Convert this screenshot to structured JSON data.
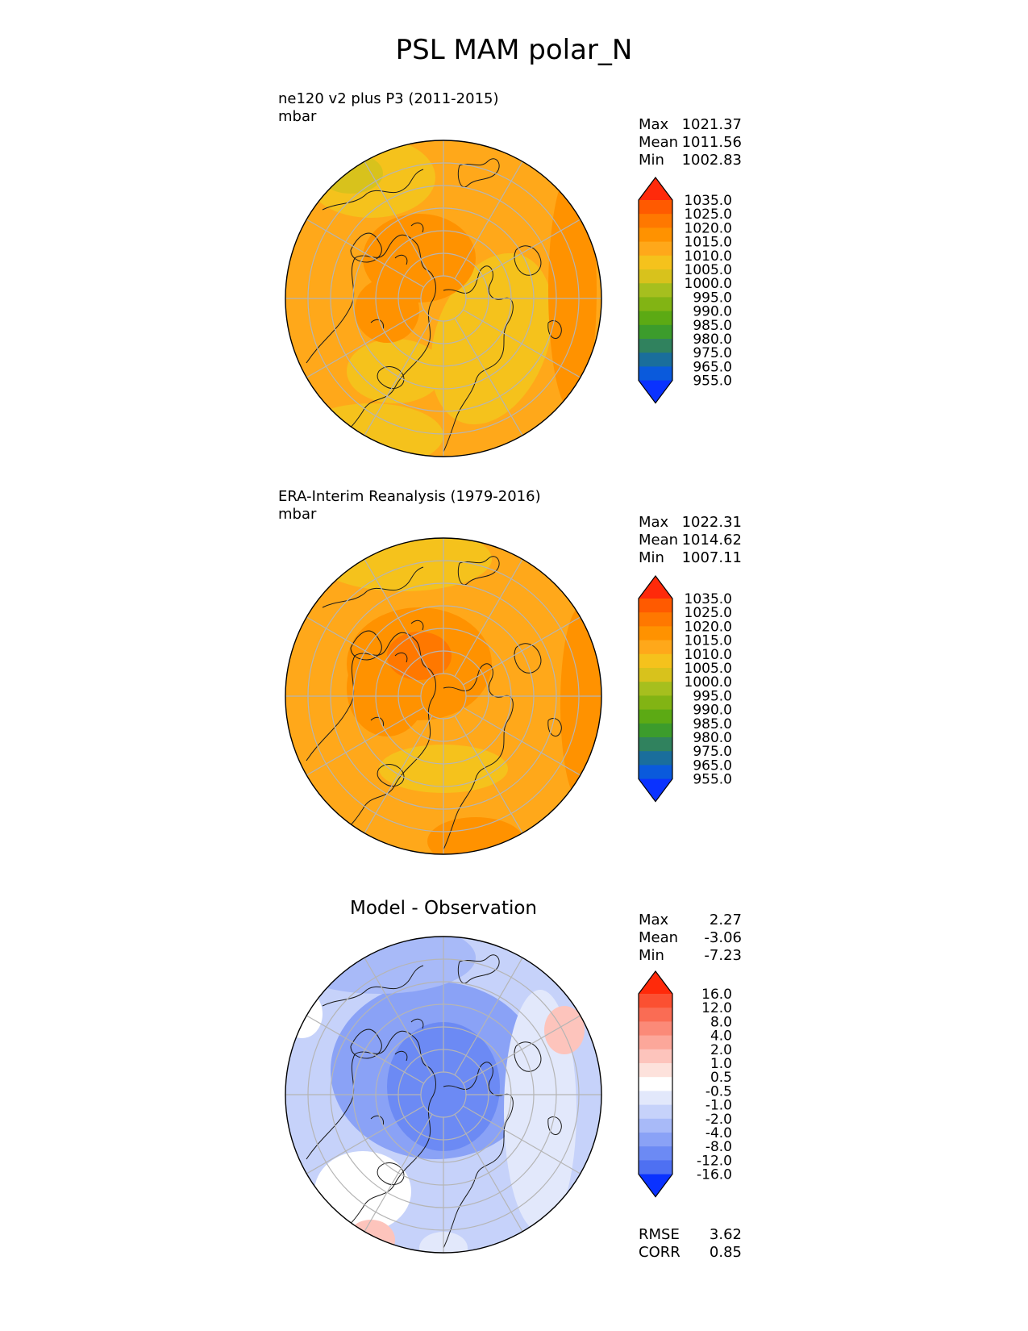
{
  "title": "PSL MAM polar_N",
  "panels": [
    {
      "id": "model",
      "title": "ne120 v2 plus P3 (2011-2015)",
      "units": "mbar",
      "stats": [
        {
          "label": "Max",
          "value": "1021.37"
        },
        {
          "label": "Mean",
          "value": "1011.56"
        },
        {
          "label": "Min",
          "value": "1002.83"
        }
      ]
    },
    {
      "id": "obs",
      "title": "ERA-Interim Reanalysis (1979-2016)",
      "units": "mbar",
      "stats": [
        {
          "label": "Max",
          "value": "1022.31"
        },
        {
          "label": "Mean",
          "value": "1014.62"
        },
        {
          "label": "Min",
          "value": "1007.11"
        }
      ]
    },
    {
      "id": "diff",
      "title": "Model - Observation",
      "stats": [
        {
          "label": "Max",
          "value": "2.27"
        },
        {
          "label": "Mean",
          "value": "-3.06"
        },
        {
          "label": "Min",
          "value": "-7.23"
        }
      ],
      "metrics": [
        {
          "label": "RMSE",
          "value": "3.62"
        },
        {
          "label": "CORR",
          "value": "0.85"
        }
      ]
    }
  ],
  "chart_data": [
    {
      "type": "heatmap",
      "projection": "north-polar-stereographic",
      "title": "ne120 v2 plus P3 (2011-2015)",
      "units": "mbar",
      "colorbar": {
        "levels": [
          "1035.0",
          "1025.0",
          "1020.0",
          "1015.0",
          "1010.0",
          "1005.0",
          "1000.0",
          "995.0",
          "990.0",
          "985.0",
          "980.0",
          "975.0",
          "965.0",
          "955.0"
        ],
        "colors": [
          "#ff2a0a",
          "#ff5a00",
          "#ff7800",
          "#ff9200",
          "#ffa81a",
          "#f5c21c",
          "#d8c21c",
          "#a6bf1e",
          "#82b414",
          "#5caa14",
          "#3c9c2c",
          "#30825e",
          "#1a6e9c",
          "#0a5adc",
          "#0a32ff"
        ],
        "extend": "both"
      },
      "stats": {
        "max": 1021.37,
        "mean": 1011.56,
        "min": 1002.83
      },
      "grid": true
    },
    {
      "type": "heatmap",
      "projection": "north-polar-stereographic",
      "title": "ERA-Interim Reanalysis (1979-2016)",
      "units": "mbar",
      "colorbar": {
        "levels": [
          "1035.0",
          "1025.0",
          "1020.0",
          "1015.0",
          "1010.0",
          "1005.0",
          "1000.0",
          "995.0",
          "990.0",
          "985.0",
          "980.0",
          "975.0",
          "965.0",
          "955.0"
        ],
        "colors": [
          "#ff2a0a",
          "#ff5a00",
          "#ff7800",
          "#ff9200",
          "#ffa81a",
          "#f5c21c",
          "#d8c21c",
          "#a6bf1e",
          "#82b414",
          "#5caa14",
          "#3c9c2c",
          "#30825e",
          "#1a6e9c",
          "#0a5adc",
          "#0a32ff"
        ],
        "extend": "both"
      },
      "stats": {
        "max": 1022.31,
        "mean": 1014.62,
        "min": 1007.11
      },
      "grid": true
    },
    {
      "type": "heatmap",
      "projection": "north-polar-stereographic",
      "title": "Model - Observation",
      "colorbar": {
        "levels": [
          "16.0",
          "12.0",
          "8.0",
          "4.0",
          "2.0",
          "1.0",
          "0.5",
          "-0.5",
          "-1.0",
          "-2.0",
          "-4.0",
          "-8.0",
          "-12.0",
          "-16.0"
        ],
        "colors": [
          "#ff2a0a",
          "#fb5032",
          "#fa6c54",
          "#fb8a78",
          "#fca79a",
          "#fdc4bc",
          "#fde2dc",
          "#ffffff",
          "#e2e8fb",
          "#c6d2fa",
          "#a8baf8",
          "#8aa2f6",
          "#6c8af4",
          "#4e70f2",
          "#0a32ff"
        ],
        "extend": "both"
      },
      "stats": {
        "max": 2.27,
        "mean": -3.06,
        "min": -7.23,
        "rmse": 3.62,
        "corr": 0.85
      },
      "grid": true
    }
  ]
}
